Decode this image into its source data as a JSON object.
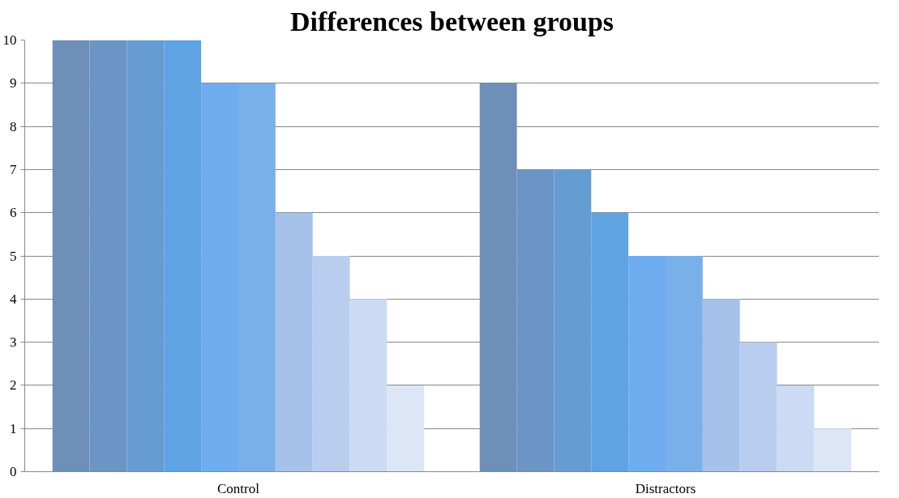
{
  "chart_data": {
    "type": "bar",
    "title": "Differences between groups",
    "categories": [
      "Control",
      "Distractors"
    ],
    "ylim": [
      0,
      10
    ],
    "yticks": [
      0,
      1,
      2,
      3,
      4,
      5,
      6,
      7,
      8,
      9,
      10
    ],
    "grid": "y",
    "series": [
      {
        "color": "#6d8fb8",
        "values": [
          10,
          9
        ]
      },
      {
        "color": "#6b95c4",
        "values": [
          10,
          7
        ]
      },
      {
        "color": "#659dd3",
        "values": [
          10,
          7
        ]
      },
      {
        "color": "#5fa3e3",
        "values": [
          10,
          6
        ]
      },
      {
        "color": "#70adf0",
        "values": [
          9,
          5
        ]
      },
      {
        "color": "#7ab0e8",
        "values": [
          9,
          5
        ]
      },
      {
        "color": "#a6c1ea",
        "values": [
          6,
          4
        ]
      },
      {
        "color": "#b9cdef",
        "values": [
          5,
          3
        ]
      },
      {
        "color": "#cbdbf4",
        "values": [
          4,
          2
        ]
      },
      {
        "color": "#dce6f6",
        "values": [
          2,
          1
        ]
      }
    ]
  }
}
